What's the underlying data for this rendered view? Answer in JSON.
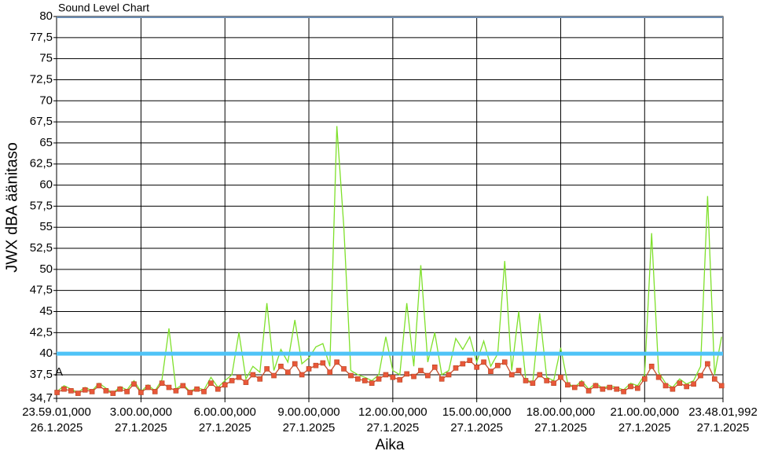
{
  "chart_data": {
    "type": "line",
    "title": "Sound Level Chart",
    "y_label": "JWX dBA äänitaso",
    "x_label": "Aika",
    "annotation": "A",
    "x": [
      0,
      0.25,
      0.5,
      0.75,
      1,
      1.25,
      1.5,
      1.75,
      2,
      2.25,
      2.5,
      2.75,
      3,
      3.25,
      3.5,
      3.75,
      4,
      4.25,
      4.5,
      4.75,
      5,
      5.25,
      5.5,
      5.75,
      6,
      6.25,
      6.5,
      6.75,
      7,
      7.25,
      7.5,
      7.75,
      8,
      8.25,
      8.5,
      8.75,
      9,
      9.25,
      9.5,
      9.75,
      10,
      10.25,
      10.5,
      10.75,
      11,
      11.25,
      11.5,
      11.75,
      12,
      12.25,
      12.5,
      12.75,
      13,
      13.25,
      13.5,
      13.75,
      14,
      14.25,
      14.5,
      14.75,
      15,
      15.25,
      15.5,
      15.75,
      16,
      16.25,
      16.5,
      16.75,
      17,
      17.25,
      17.5,
      17.75,
      18,
      18.25,
      18.5,
      18.75,
      19,
      19.25,
      19.5,
      19.75,
      20,
      20.25,
      20.5,
      20.75,
      21,
      21.25,
      21.5,
      21.75,
      22,
      22.25,
      22.5,
      22.75,
      23,
      23.25,
      23.5,
      23.75
    ],
    "series": [
      {
        "name": "LAF",
        "color": "#7ee02a",
        "markers": false,
        "values": [
          35.5,
          36.2,
          35.8,
          35.4,
          36,
          35.6,
          36.5,
          35.9,
          35.3,
          36.1,
          35.7,
          36.8,
          35.5,
          36.3,
          35.6,
          36.9,
          43,
          35.8,
          36.4,
          35.5,
          36,
          35.7,
          37.2,
          36,
          36.8,
          37.5,
          42.5,
          37,
          38.5,
          37.8,
          46,
          38,
          40.5,
          39,
          44,
          38.8,
          39.5,
          40.8,
          41.2,
          38.5,
          67,
          55,
          38,
          37.5,
          37.2,
          36.8,
          37.5,
          42,
          38,
          37.5,
          46,
          38.5,
          50.5,
          39,
          42.5,
          37.5,
          38,
          41.8,
          40.5,
          42,
          39,
          41.5,
          38.5,
          40,
          51,
          38,
          45,
          37,
          36.5,
          44.8,
          37.2,
          36.8,
          40.7,
          36.5,
          36,
          36.8,
          35.8,
          36.5,
          35.9,
          36.2,
          36,
          35.7,
          36.5,
          36.2,
          37.5,
          54.3,
          37.8,
          36.5,
          36,
          37,
          36.4,
          36.8,
          38.5,
          58.7,
          37.5,
          42
        ]
      },
      {
        "name": "LAeq",
        "color": "#e8583a",
        "markers": true,
        "values": [
          35.4,
          35.8,
          35.6,
          35.3,
          35.7,
          35.5,
          36.2,
          35.6,
          35.3,
          35.8,
          35.5,
          36.4,
          35.4,
          36,
          35.5,
          36.5,
          36,
          35.6,
          36.2,
          35.4,
          35.8,
          35.5,
          36.5,
          35.8,
          36.3,
          36.8,
          37.2,
          36.6,
          37.5,
          37,
          38.2,
          37.4,
          38.5,
          37.8,
          38.8,
          37.5,
          38.2,
          38.6,
          38.9,
          37.8,
          39,
          38.2,
          37.4,
          37,
          36.8,
          36.5,
          37,
          37.5,
          37.2,
          36.9,
          37.6,
          37.3,
          38,
          37.4,
          38.4,
          37,
          37.5,
          38.3,
          38.8,
          39.2,
          38.4,
          39,
          37.9,
          38.6,
          39,
          37.5,
          38,
          36.8,
          36.5,
          37.5,
          36.8,
          36.5,
          37.2,
          36.3,
          36,
          36.4,
          35.6,
          36.2,
          35.8,
          36,
          35.8,
          35.5,
          36.1,
          35.9,
          37,
          38.5,
          37.2,
          36.2,
          35.8,
          36.5,
          36.1,
          36.4,
          37.4,
          38.8,
          37,
          36.2
        ]
      }
    ],
    "threshold": {
      "value": 40,
      "color": "#4fc3f7"
    },
    "xlim": [
      -0.0164,
      23.8006
    ],
    "xticks": [
      {
        "value": -0.0164,
        "label": "23.59.01,000\n26.1.2025"
      },
      {
        "value": 3,
        "label": "3.00.00,000\n27.1.2025"
      },
      {
        "value": 6,
        "label": "6.00.00,000\n27.1.2025"
      },
      {
        "value": 9,
        "label": "9.00.00,000\n27.1.2025"
      },
      {
        "value": 12,
        "label": "12.00.00,000\n27.1.2025"
      },
      {
        "value": 15,
        "label": "15.00.00,000\n27.1.2025"
      },
      {
        "value": 18,
        "label": "18.00.00,000\n27.1.2025"
      },
      {
        "value": 21,
        "label": "21.00.00,000\n27.1.2025"
      },
      {
        "value": 23.8006,
        "label": "23.48.01,992\n27.1.2025"
      }
    ],
    "ylim": [
      34.7,
      80
    ],
    "yticks": [
      {
        "value": 34.7,
        "label": "34,7"
      },
      {
        "value": 37.5,
        "label": "37,5"
      },
      40,
      {
        "value": 42.5,
        "label": "42,5"
      },
      45,
      {
        "value": 47.5,
        "label": "47,5"
      },
      50,
      {
        "value": 52.5,
        "label": "52,5"
      },
      55,
      {
        "value": 57.5,
        "label": "57,5"
      },
      60,
      {
        "value": 62.5,
        "label": "62,5"
      },
      65,
      {
        "value": 67.5,
        "label": "67,5"
      },
      70,
      {
        "value": 72.5,
        "label": "72,5"
      },
      75,
      {
        "value": 77.5,
        "label": "77,5"
      },
      80
    ],
    "grid": true
  }
}
